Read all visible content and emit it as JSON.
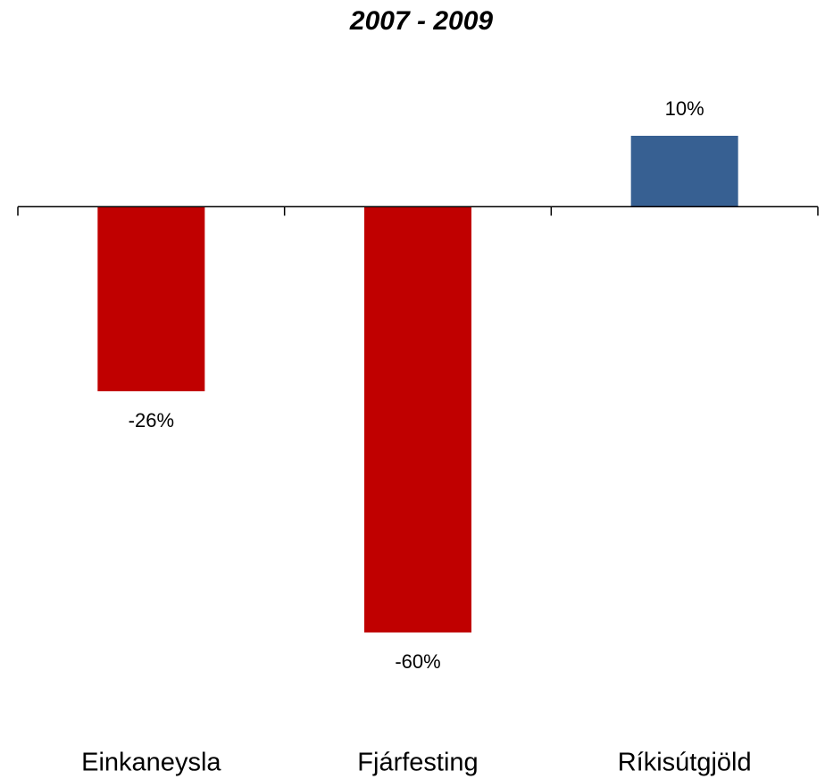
{
  "chart_data": {
    "type": "bar",
    "title": "2007 - 2009",
    "categories": [
      "Einkaneysla",
      "Fjárfesting",
      "Ríkisútgjöld"
    ],
    "values": [
      -26,
      -60,
      10
    ],
    "value_labels": [
      "-26%",
      "-60%",
      "10%"
    ],
    "colors": [
      "#c00000",
      "#c00000",
      "#376092"
    ]
  }
}
